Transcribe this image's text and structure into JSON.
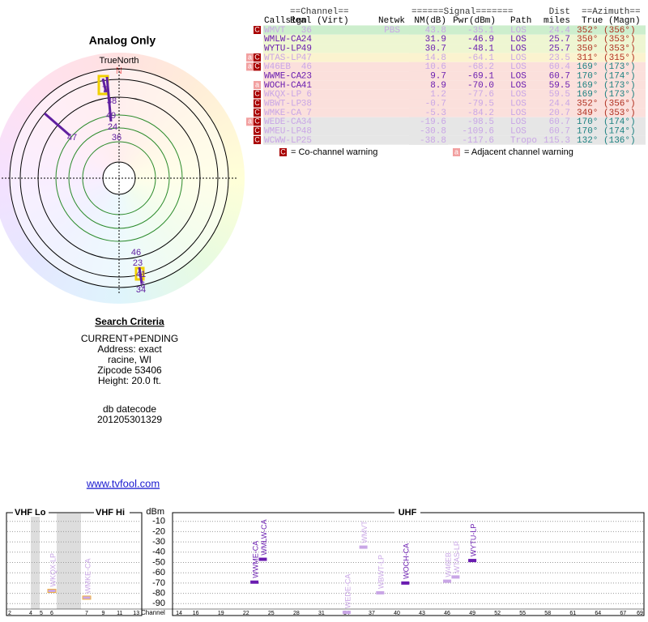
{
  "polar": {
    "title": "Analog Only",
    "north_label": "TrueNorth",
    "north": "N"
  },
  "table": {
    "group_headers": [
      "==Channel==",
      "======Signal=======",
      "Dist",
      "==Azimuth=="
    ],
    "headers": [
      "Callsign",
      "Real (Virt)",
      "Netwk",
      "NM(dB)",
      "Pwr(dBm)",
      "Path",
      "miles",
      "True (Magn)"
    ],
    "rows": [
      {
        "warnings": [
          "C"
        ],
        "callsign": "WMVT",
        "real": 36,
        "network": "PBS",
        "nm": "43.8",
        "pwr": "-35.1",
        "path": "LOS",
        "dist": "24.4",
        "azimuth": "352° (356°)",
        "bg": "#cdeecd",
        "color": "#c9a6e6",
        "az_color": "#b03020"
      },
      {
        "callsign": "WMLW-CA",
        "real": 24,
        "nm": "31.9",
        "pwr": "-46.9",
        "path": "LOS",
        "dist": "25.7",
        "azimuth": "350° (353°)",
        "bg": "#eef6d2",
        "color": "#6a1cb0",
        "az_color": "#b03020"
      },
      {
        "callsign": "WYTU-LP",
        "real": 49,
        "nm": "30.7",
        "pwr": "-48.1",
        "path": "LOS",
        "dist": "25.7",
        "azimuth": "350° (353°)",
        "bg": "#eef6d2",
        "color": "#6a1cb0",
        "az_color": "#b03020"
      },
      {
        "warnings": [
          "a",
          "C"
        ],
        "callsign": "WTAS-LP",
        "real": 47,
        "nm": "14.8",
        "pwr": "-64.1",
        "path": "LOS",
        "dist": "23.5",
        "azimuth": "311° (315°)",
        "bg": "#fbf3cf",
        "color": "#c9a6e6",
        "az_color": "#b03020"
      },
      {
        "warnings": [
          "a",
          "C"
        ],
        "callsign": "W46EB",
        "real": 46,
        "nm": "10.6",
        "pwr": "-68.2",
        "path": "LOS",
        "dist": "60.4",
        "azimuth": "169° (173°)",
        "bg": "#fbe0dc",
        "color": "#c9a6e6",
        "az_color": "#1a8080"
      },
      {
        "callsign": "WWME-CA",
        "real": 23,
        "nm": "9.7",
        "pwr": "-69.1",
        "path": "LOS",
        "dist": "60.7",
        "azimuth": "170° (174°)",
        "bg": "#fbe0dc",
        "color": "#6a1cb0",
        "az_color": "#1a8080"
      },
      {
        "warnings": [
          "a"
        ],
        "callsign": "WOCH-CA",
        "real": 41,
        "nm": "8.9",
        "pwr": "-70.0",
        "path": "LOS",
        "dist": "59.5",
        "azimuth": "169° (173°)",
        "bg": "#fbe0dc",
        "color": "#6a1cb0",
        "az_color": "#1a8080"
      },
      {
        "warnings": [
          "C"
        ],
        "callsign": "WKQX-LP",
        "real": 6,
        "nm": "1.2",
        "pwr": "-77.6",
        "path": "LOS",
        "dist": "59.5",
        "azimuth": "169° (173°)",
        "bg": "#fbe0dc",
        "color": "#c9a6e6",
        "az_color": "#1a8080"
      },
      {
        "warnings": [
          "C"
        ],
        "callsign": "WBWT-LP",
        "real": 38,
        "nm": "-0.7",
        "pwr": "-79.5",
        "path": "LOS",
        "dist": "24.4",
        "azimuth": "352° (356°)",
        "bg": "#fbe0dc",
        "color": "#c9a6e6",
        "az_color": "#b03020"
      },
      {
        "warnings": [
          "C"
        ],
        "callsign": "WMKE-CA",
        "real": 7,
        "nm": "-5.3",
        "pwr": "-84.2",
        "path": "LOS",
        "dist": "20.7",
        "azimuth": "349° (353°)",
        "bg": "#fbe0dc",
        "color": "#c9a6e6",
        "az_color": "#b03020"
      },
      {
        "warnings": [
          "a",
          "C"
        ],
        "callsign": "WEDE-CA",
        "real": 34,
        "nm": "-19.6",
        "pwr": "-98.5",
        "path": "LOS",
        "dist": "60.7",
        "azimuth": "170° (174°)",
        "bg": "#e6e6e6",
        "color": "#c9a6e6",
        "az_color": "#1a8080"
      },
      {
        "warnings": [
          "C"
        ],
        "callsign": "WMEU-LP",
        "real": 48,
        "nm": "-30.8",
        "pwr": "-109.6",
        "path": "LOS",
        "dist": "60.7",
        "azimuth": "170° (174°)",
        "bg": "#e6e6e6",
        "color": "#c9a6e6",
        "az_color": "#1a8080"
      },
      {
        "warnings": [
          "C"
        ],
        "callsign": "WCWW-LP",
        "real": 25,
        "nm": "-38.8",
        "pwr": "-117.6",
        "path": "Tropo",
        "dist": "115.3",
        "azimuth": "132° (136°)",
        "bg": "#e6e6e6",
        "color": "#c9a6e6",
        "az_color": "#1a8080"
      }
    ]
  },
  "legend": [
    {
      "icon": "C",
      "text": "= Co-channel warning"
    },
    {
      "icon": "a",
      "text": "= Adjacent channel warning"
    }
  ],
  "search": {
    "heading": "Search Criteria",
    "lines": [
      "CURRENT+PENDING",
      "Address: exact",
      "racine, WI",
      "Zipcode 53406",
      "Height: 20.0 ft."
    ],
    "datecode_label": "db datecode",
    "datecode": "201205301329"
  },
  "link": "www.tvfool.com",
  "spectrum": {
    "bands": [
      "VHF Lo",
      "VHF Hi",
      "UHF"
    ],
    "unit": "dBm",
    "ylim": [
      0,
      -100
    ],
    "yticks": [
      -10,
      -20,
      -30,
      -40,
      -50,
      -60,
      -70,
      -80,
      -90
    ],
    "channel_label": "Channel",
    "vhf_channels": [
      2,
      4,
      5,
      6,
      7,
      9,
      11,
      13
    ],
    "uhf_xlim": [
      14,
      69
    ],
    "uhf_channels": [
      14,
      16,
      19,
      22,
      25,
      28,
      31,
      34,
      37,
      40,
      43,
      46,
      49,
      52,
      55,
      58,
      61,
      64,
      67,
      69
    ]
  }
}
